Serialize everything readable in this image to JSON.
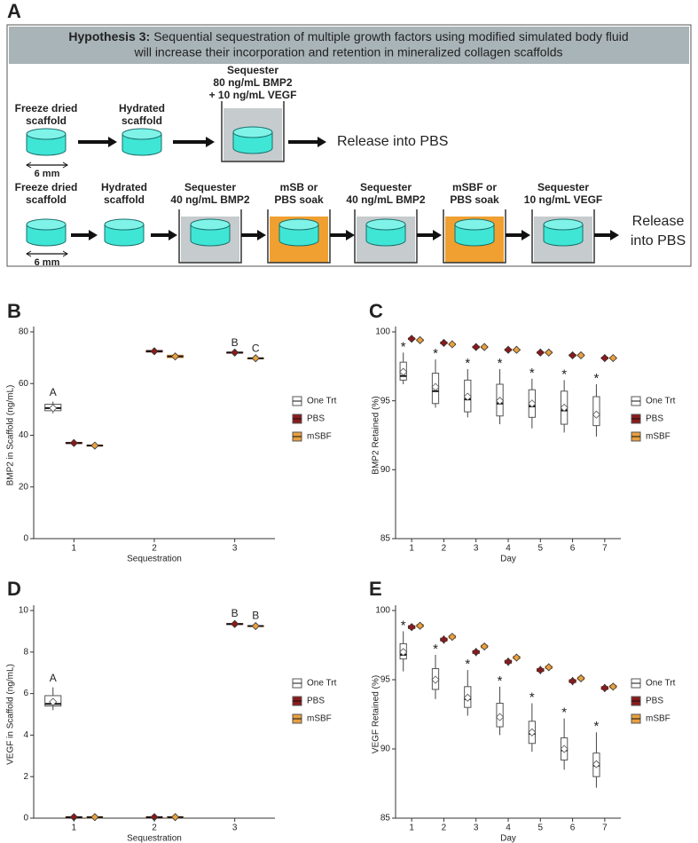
{
  "diagram": {
    "panel": "A",
    "header": {
      "lead": "Hypothesis 3:",
      "line1": "Sequential sequestration of multiple growth factors using modified simulated body fluid",
      "line2": "will increase their incorporation and retention in mineralized collagen scaffolds"
    },
    "row1": {
      "steps": [
        [
          "Freeze dried",
          "scaffold"
        ],
        [
          "Hydrated",
          "scaffold"
        ],
        [
          "Sequester",
          "80 ng/mL BMP2",
          "+ 10 ng/mL VEGF"
        ]
      ],
      "scale": "6 mm",
      "release": [
        "Release into PBS"
      ]
    },
    "row2": {
      "steps": [
        [
          "Freeze dried",
          "scaffold"
        ],
        [
          "Hydrated",
          "scaffold"
        ],
        [
          "Sequester",
          "40 ng/mL BMP2"
        ],
        [
          "mSB or",
          "PBS soak"
        ],
        [
          "Sequester",
          "40 ng/mL BMP2"
        ],
        [
          "mSBF or",
          "PBS soak"
        ],
        [
          "Sequester",
          "10 ng/mL VEGF"
        ]
      ],
      "scale": "6 mm",
      "release": [
        "Release",
        "into PBS"
      ]
    }
  },
  "chart_data": [
    {
      "panel": "B",
      "type": "box",
      "x_label": "Sequestration",
      "y_label": "BMP2 in Scaffold (ng/mL)",
      "categories": [
        "1",
        "2",
        "3"
      ],
      "ylim": [
        0,
        80
      ],
      "yticks": [
        0,
        20,
        40,
        60,
        80
      ],
      "series": [
        {
          "name": "One Trt",
          "color": "#ffffff",
          "boxes": [
            {
              "min": 48.5,
              "q1": 49.5,
              "median": 50.5,
              "q3": 52,
              "max": 53,
              "mean": 50.5,
              "label": "A"
            },
            null,
            null
          ]
        },
        {
          "name": "PBS",
          "color": "#8b1a1a",
          "boxes": [
            {
              "min": 36.5,
              "q1": 36.8,
              "median": 37,
              "q3": 37.2,
              "max": 37.5,
              "mean": 37
            },
            {
              "min": 72,
              "q1": 72.2,
              "median": 72.5,
              "q3": 72.8,
              "max": 73,
              "mean": 72.5
            },
            {
              "min": 71.8,
              "q1": 71.9,
              "median": 72,
              "q3": 72.1,
              "max": 72.2,
              "mean": 72,
              "label": "B"
            }
          ]
        },
        {
          "name": "mSBF",
          "color": "#e8a040",
          "boxes": [
            {
              "min": 35.5,
              "q1": 35.8,
              "median": 36,
              "q3": 36.2,
              "max": 36.5,
              "mean": 36
            },
            {
              "min": 69.8,
              "q1": 70,
              "median": 70.5,
              "q3": 71,
              "max": 71.2,
              "mean": 70.5
            },
            {
              "min": 69.6,
              "q1": 69.7,
              "median": 69.8,
              "q3": 69.9,
              "max": 70,
              "mean": 69.8,
              "label": "C"
            }
          ]
        }
      ]
    },
    {
      "panel": "C",
      "type": "box",
      "x_label": "Day",
      "y_label": "BMP2 Retained (%)",
      "categories": [
        "1",
        "2",
        "3",
        "4",
        "5",
        "6",
        "7"
      ],
      "ylim": [
        85,
        100
      ],
      "yticks": [
        85,
        90,
        95,
        100
      ],
      "series": [
        {
          "name": "One Trt",
          "color": "#ffffff",
          "boxes": [
            {
              "min": 96.2,
              "q1": 96.5,
              "median": 96.8,
              "q3": 97.8,
              "max": 98.5,
              "mean": 97.1,
              "label": "*"
            },
            {
              "min": 94.5,
              "q1": 94.8,
              "median": 95.7,
              "q3": 97,
              "max": 98,
              "mean": 96,
              "label": "*"
            },
            {
              "min": 93.8,
              "q1": 94.2,
              "median": 95.1,
              "q3": 96.5,
              "max": 97.3,
              "mean": 95.3,
              "label": "*"
            },
            {
              "min": 93.3,
              "q1": 93.9,
              "median": 94.8,
              "q3": 96.2,
              "max": 97.3,
              "mean": 95,
              "label": "*"
            },
            {
              "min": 93,
              "q1": 93.8,
              "median": 94.6,
              "q3": 95.8,
              "max": 96.6,
              "mean": 94.8,
              "label": "*"
            },
            {
              "min": 92.7,
              "q1": 93.3,
              "median": 94.3,
              "q3": 95.7,
              "max": 96.5,
              "mean": 94.5,
              "label": "*"
            },
            {
              "min": 92.4,
              "q1": 93.2,
              "median": 94,
              "q3": 95.3,
              "max": 96.2,
              "mean": 94,
              "label": "*"
            }
          ]
        },
        {
          "name": "PBS",
          "color": "#8b1a1a",
          "boxes": [
            {
              "min": 99.35,
              "q1": 99.45,
              "median": 99.5,
              "q3": 99.55,
              "max": 99.65,
              "mean": 99.5
            },
            {
              "min": 99.05,
              "q1": 99.15,
              "median": 99.2,
              "q3": 99.25,
              "max": 99.35,
              "mean": 99.2
            },
            {
              "min": 98.75,
              "q1": 98.85,
              "median": 98.9,
              "q3": 98.95,
              "max": 99.05,
              "mean": 98.9
            },
            {
              "min": 98.55,
              "q1": 98.65,
              "median": 98.7,
              "q3": 98.75,
              "max": 98.85,
              "mean": 98.7
            },
            {
              "min": 98.35,
              "q1": 98.45,
              "median": 98.5,
              "q3": 98.55,
              "max": 98.65,
              "mean": 98.5
            },
            {
              "min": 98.15,
              "q1": 98.25,
              "median": 98.3,
              "q3": 98.35,
              "max": 98.45,
              "mean": 98.3
            },
            {
              "min": 97.95,
              "q1": 98.05,
              "median": 98.1,
              "q3": 98.15,
              "max": 98.25,
              "mean": 98.1
            }
          ]
        },
        {
          "name": "mSBF",
          "color": "#e8a040",
          "boxes": [
            {
              "min": 99.25,
              "q1": 99.35,
              "median": 99.4,
              "q3": 99.45,
              "max": 99.55,
              "mean": 99.4
            },
            {
              "min": 98.95,
              "q1": 99.05,
              "median": 99.1,
              "q3": 99.15,
              "max": 99.25,
              "mean": 99.1
            },
            {
              "min": 98.75,
              "q1": 98.85,
              "median": 98.9,
              "q3": 98.95,
              "max": 99.05,
              "mean": 98.9
            },
            {
              "min": 98.55,
              "q1": 98.65,
              "median": 98.7,
              "q3": 98.75,
              "max": 98.85,
              "mean": 98.7
            },
            {
              "min": 98.35,
              "q1": 98.45,
              "median": 98.5,
              "q3": 98.55,
              "max": 98.65,
              "mean": 98.5
            },
            {
              "min": 98.15,
              "q1": 98.25,
              "median": 98.3,
              "q3": 98.35,
              "max": 98.45,
              "mean": 98.3
            },
            {
              "min": 97.95,
              "q1": 98.05,
              "median": 98.1,
              "q3": 98.15,
              "max": 98.25,
              "mean": 98.1
            }
          ]
        }
      ]
    },
    {
      "panel": "D",
      "type": "box",
      "x_label": "Sequestration",
      "y_label": "VEGF in Scaffold (ng/mL)",
      "categories": [
        "1",
        "2",
        "3"
      ],
      "ylim": [
        0,
        10
      ],
      "yticks": [
        0,
        2,
        4,
        6,
        8,
        10
      ],
      "series": [
        {
          "name": "One Trt",
          "color": "#ffffff",
          "boxes": [
            {
              "min": 5.2,
              "q1": 5.4,
              "median": 5.5,
              "q3": 5.9,
              "max": 6.3,
              "mean": 5.6,
              "label": "A"
            },
            null,
            null
          ]
        },
        {
          "name": "PBS",
          "color": "#8b1a1a",
          "boxes": [
            {
              "min": 0.03,
              "q1": 0.04,
              "median": 0.05,
              "q3": 0.06,
              "max": 0.07,
              "mean": 0.05
            },
            {
              "min": 0.03,
              "q1": 0.04,
              "median": 0.05,
              "q3": 0.06,
              "max": 0.07,
              "mean": 0.05
            },
            {
              "min": 9.3,
              "q1": 9.33,
              "median": 9.35,
              "q3": 9.37,
              "max": 9.4,
              "mean": 9.35,
              "label": "B"
            }
          ]
        },
        {
          "name": "mSBF",
          "color": "#e8a040",
          "boxes": [
            {
              "min": 0.03,
              "q1": 0.04,
              "median": 0.05,
              "q3": 0.06,
              "max": 0.07,
              "mean": 0.05
            },
            {
              "min": 0.03,
              "q1": 0.04,
              "median": 0.05,
              "q3": 0.06,
              "max": 0.07,
              "mean": 0.05
            },
            {
              "min": 9.2,
              "q1": 9.23,
              "median": 9.25,
              "q3": 9.27,
              "max": 9.3,
              "mean": 9.25,
              "label": "B"
            }
          ]
        }
      ]
    },
    {
      "panel": "E",
      "type": "box",
      "x_label": "Day",
      "y_label": "VEGF Retained (%)",
      "categories": [
        "1",
        "2",
        "3",
        "4",
        "5",
        "6",
        "7"
      ],
      "ylim": [
        85,
        100
      ],
      "yticks": [
        85,
        90,
        95,
        100
      ],
      "series": [
        {
          "name": "One Trt",
          "color": "#ffffff",
          "boxes": [
            {
              "min": 95.6,
              "q1": 96.5,
              "median": 96.8,
              "q3": 97.6,
              "max": 98.5,
              "mean": 97,
              "label": "*"
            },
            {
              "min": 93.6,
              "q1": 94.3,
              "median": 95,
              "q3": 95.8,
              "max": 96.8,
              "mean": 95,
              "label": "*"
            },
            {
              "min": 92.4,
              "q1": 93,
              "median": 93.6,
              "q3": 94.5,
              "max": 95.7,
              "mean": 93.7,
              "label": "*"
            },
            {
              "min": 91,
              "q1": 91.6,
              "median": 92.3,
              "q3": 93.3,
              "max": 94.5,
              "mean": 92.3,
              "label": "*"
            },
            {
              "min": 89.8,
              "q1": 90.4,
              "median": 91.1,
              "q3": 92,
              "max": 93.3,
              "mean": 91.2,
              "label": "*"
            },
            {
              "min": 88.5,
              "q1": 89.2,
              "median": 89.9,
              "q3": 90.8,
              "max": 92.2,
              "mean": 90,
              "label": "*"
            },
            {
              "min": 87.2,
              "q1": 88,
              "median": 88.8,
              "q3": 89.7,
              "max": 91.2,
              "mean": 88.9,
              "label": "*"
            }
          ]
        },
        {
          "name": "PBS",
          "color": "#8b1a1a",
          "boxes": [
            {
              "min": 98.6,
              "q1": 98.7,
              "median": 98.8,
              "q3": 98.9,
              "max": 99,
              "mean": 98.8
            },
            {
              "min": 97.6,
              "q1": 97.8,
              "median": 97.9,
              "q3": 98,
              "max": 98.2,
              "mean": 97.9
            },
            {
              "min": 96.7,
              "q1": 96.9,
              "median": 97,
              "q3": 97.1,
              "max": 97.3,
              "mean": 97
            },
            {
              "min": 96,
              "q1": 96.2,
              "median": 96.3,
              "q3": 96.4,
              "max": 96.6,
              "mean": 96.3
            },
            {
              "min": 95.4,
              "q1": 95.6,
              "median": 95.7,
              "q3": 95.8,
              "max": 96,
              "mean": 95.7
            },
            {
              "min": 94.6,
              "q1": 94.8,
              "median": 94.9,
              "q3": 95,
              "max": 95.2,
              "mean": 94.9
            },
            {
              "min": 94.1,
              "q1": 94.3,
              "median": 94.4,
              "q3": 94.5,
              "max": 94.7,
              "mean": 94.4
            }
          ]
        },
        {
          "name": "mSBF",
          "color": "#e8a040",
          "boxes": [
            {
              "min": 98.7,
              "q1": 98.8,
              "median": 98.9,
              "q3": 99,
              "max": 99.1,
              "mean": 98.9
            },
            {
              "min": 97.9,
              "q1": 98,
              "median": 98.1,
              "q3": 98.2,
              "max": 98.3,
              "mean": 98.1
            },
            {
              "min": 97.2,
              "q1": 97.3,
              "median": 97.4,
              "q3": 97.5,
              "max": 97.6,
              "mean": 97.4
            },
            {
              "min": 96.4,
              "q1": 96.5,
              "median": 96.6,
              "q3": 96.7,
              "max": 96.8,
              "mean": 96.6
            },
            {
              "min": 95.7,
              "q1": 95.8,
              "median": 95.9,
              "q3": 96,
              "max": 96.1,
              "mean": 95.9
            },
            {
              "min": 94.9,
              "q1": 95,
              "median": 95.1,
              "q3": 95.2,
              "max": 95.3,
              "mean": 95.1
            },
            {
              "min": 94.3,
              "q1": 94.4,
              "median": 94.5,
              "q3": 94.6,
              "max": 94.7,
              "mean": 94.5
            }
          ]
        }
      ]
    }
  ]
}
